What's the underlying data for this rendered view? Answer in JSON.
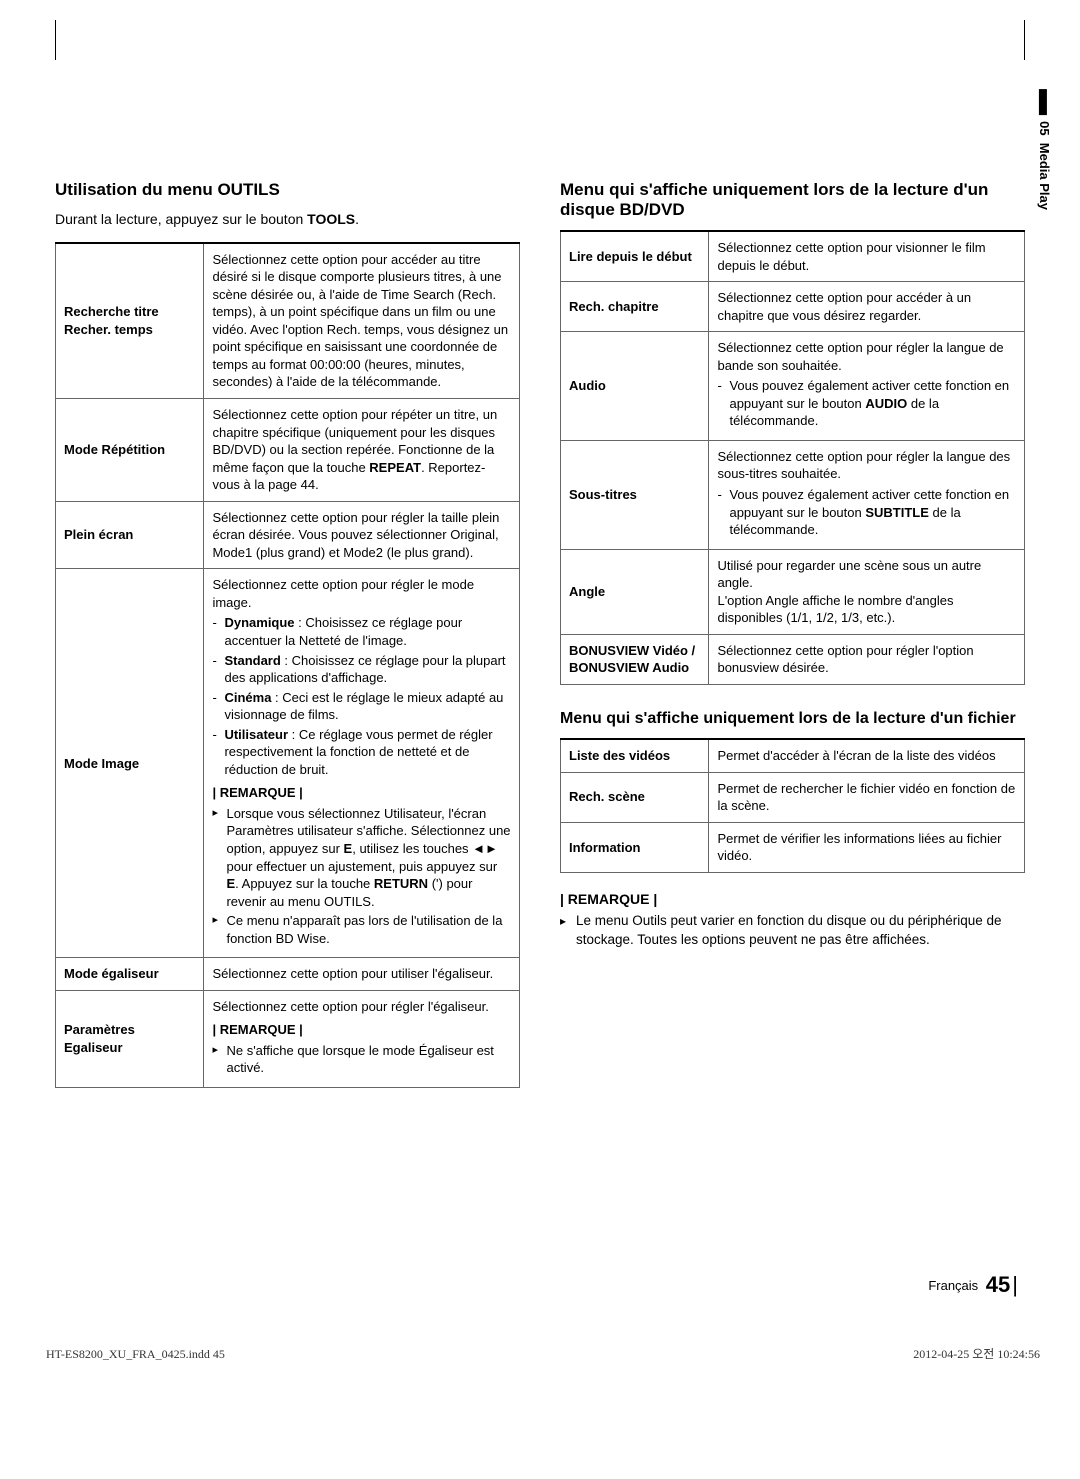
{
  "sideTab": {
    "section": "05",
    "label": "Media Play"
  },
  "left": {
    "title": "Utilisation du menu OUTILS",
    "intro_pre": "Durant la lecture, appuyez sur le bouton ",
    "intro_bold": "TOOLS",
    "intro_post": ".",
    "rows": {
      "rechercheTitre": {
        "label": "Recherche titre\nRecher. temps",
        "desc": "Sélectionnez cette option pour accéder au titre désiré si le disque comporte plusieurs titres, à une scène désirée ou, à l'aide de Time Search (Rech. temps), à un point spécifique dans un film ou une vidéo. Avec l'option Rech. temps, vous désignez un point spécifique en saisissant une coordonnée de temps au format 00:00:00 (heures, minutes, secondes) à l'aide de la télécommande."
      },
      "modeRepetition": {
        "label": "Mode Répétition",
        "desc_pre": "Sélectionnez cette option pour répéter un titre, un chapitre spécifique (uniquement pour les disques BD/DVD) ou la section repérée. Fonctionne de la même façon que la touche ",
        "desc_bold": "REPEAT",
        "desc_post": ". Reportez-vous à la page 44."
      },
      "pleinEcran": {
        "label": "Plein écran",
        "desc": "Sélectionnez cette option pour régler la taille plein écran désirée. Vous pouvez sélectionner Original, Mode1 (plus grand) et Mode2 (le plus grand)."
      },
      "modeImage": {
        "label": "Mode Image",
        "intro": "Sélectionnez cette option pour régler le mode image.",
        "items": {
          "dyn_b": "Dynamique",
          "dyn_t": " : Choisissez ce réglage pour accentuer la Netteté de l'image.",
          "std_b": "Standard",
          "std_t": " : Choisissez ce réglage pour la plupart des applications d'affichage.",
          "cin_b": "Cinéma",
          "cin_t": " : Ceci est le réglage le mieux adapté au visionnage de films.",
          "usr_b": "Utilisateur",
          "usr_t": " : Ce réglage vous permet de régler respectivement la fonction de netteté et de réduction de bruit."
        },
        "remarqueLabel": "| REMARQUE |",
        "note1_pre": "Lorsque vous sélectionnez Utilisateur, l'écran Paramètres utilisateur s'affiche. Sélectionnez une option, appuyez sur ",
        "note1_mid1": "E",
        "note1_mid2": ", utilisez les touches ◄► pour effectuer un ajustement, puis appuyez sur ",
        "note1_mid3": "E",
        "note1_mid4": ". Appuyez sur la touche ",
        "note1_bold": "RETURN",
        "note1_post": " (') pour revenir au menu OUTILS.",
        "note2": "Ce menu n'apparaît pas lors de l'utilisation de la fonction BD Wise."
      },
      "modeEgaliseur": {
        "label": "Mode égaliseur",
        "desc": "Sélectionnez cette option pour utiliser l'égaliseur."
      },
      "paramEgaliseur": {
        "label": "Paramètres Egaliseur",
        "desc": "Sélectionnez cette option pour régler l'égaliseur.",
        "remarqueLabel": "| REMARQUE |",
        "note": "Ne s'affiche que lorsque le mode Égaliseur est activé."
      }
    }
  },
  "right": {
    "title1": "Menu qui s'affiche uniquement lors de la lecture d'un disque BD/DVD",
    "rows1": {
      "lireDebut": {
        "label": "Lire depuis le début",
        "desc": "Sélectionnez cette option pour visionner le film depuis le début."
      },
      "rechChapitre": {
        "label": "Rech. chapitre",
        "desc": "Sélectionnez cette option pour accéder à un chapitre que vous désirez regarder."
      },
      "audio": {
        "label": "Audio",
        "desc": "Sélectionnez cette option pour régler la langue de bande son souhaitée.",
        "bullet_pre": "Vous pouvez également activer cette fonction en appuyant sur le bouton ",
        "bullet_bold": "AUDIO",
        "bullet_post": " de la télécommande."
      },
      "sousTitres": {
        "label": "Sous-titres",
        "desc": "Sélectionnez cette option pour régler la langue des sous-titres souhaitée.",
        "bullet_pre": "Vous pouvez également activer cette fonction en appuyant sur le bouton ",
        "bullet_bold": "SUBTITLE",
        "bullet_post": " de la télécommande."
      },
      "angle": {
        "label": "Angle",
        "desc": "Utilisé pour regarder une scène sous un autre angle.\nL'option Angle affiche le nombre d'angles disponibles (1/1, 1/2, 1/3, etc.)."
      },
      "bonusview": {
        "label": "BONUSVIEW Vidéo / BONUSVIEW Audio",
        "desc": "Sélectionnez cette option pour régler l'option bonusview désirée."
      }
    },
    "title2": "Menu qui s'affiche uniquement lors de la lecture d'un fichier",
    "rows2": {
      "listeVideos": {
        "label": "Liste des vidéos",
        "desc": "Permet d'accéder à l'écran de la liste des vidéos"
      },
      "rechScene": {
        "label": "Rech. scène",
        "desc": "Permet de rechercher le fichier vidéo en fonction de la scène."
      },
      "information": {
        "label": "Information",
        "desc": "Permet de vérifier les informations liées au fichier vidéo."
      }
    },
    "note": {
      "head": "| REMARQUE |",
      "text": "Le menu Outils peut varier en fonction du disque ou du périphérique de stockage. Toutes les options peuvent ne pas être affichées."
    }
  },
  "footer": {
    "lang": "Français",
    "page": "45"
  },
  "print": {
    "left": "HT-ES8200_XU_FRA_0425.indd   45",
    "right": "2012-04-25   오전 10:24:56"
  }
}
